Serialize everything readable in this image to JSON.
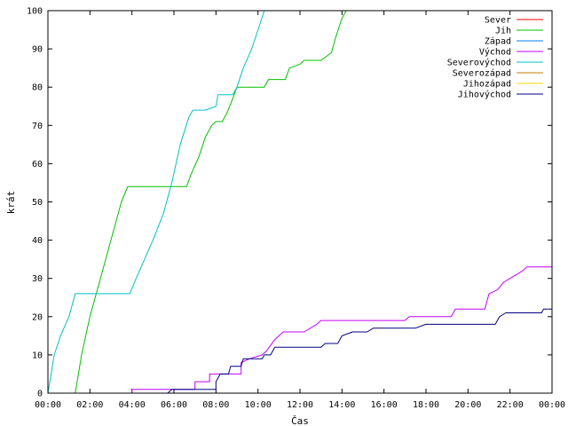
{
  "chart_data": {
    "type": "line",
    "title": "",
    "xlabel": "Čas",
    "ylabel": "krát",
    "x_ticks": [
      "00:00",
      "02:00",
      "04:00",
      "06:00",
      "08:00",
      "10:00",
      "12:00",
      "14:00",
      "16:00",
      "18:00",
      "20:00",
      "22:00",
      "00:00"
    ],
    "xlim": [
      0,
      24
    ],
    "ylim": [
      0,
      100
    ],
    "y_ticks": [
      0,
      10,
      20,
      30,
      40,
      50,
      60,
      70,
      80,
      90,
      100
    ],
    "grid": false,
    "legend_position": "top-right",
    "series": [
      {
        "name": "Sever",
        "color": "#ff0000",
        "points": []
      },
      {
        "name": "Jih",
        "color": "#00c000",
        "points": [
          [
            1.3,
            0
          ],
          [
            1.6,
            10
          ],
          [
            2.0,
            20
          ],
          [
            2.5,
            30
          ],
          [
            3.0,
            40
          ],
          [
            3.5,
            50
          ],
          [
            3.8,
            54
          ],
          [
            4.5,
            54
          ],
          [
            5.5,
            54
          ],
          [
            6.6,
            54
          ],
          [
            6.8,
            57
          ],
          [
            7.2,
            62
          ],
          [
            7.5,
            67
          ],
          [
            7.8,
            70
          ],
          [
            8.0,
            71
          ],
          [
            8.3,
            71
          ],
          [
            8.5,
            73
          ],
          [
            8.8,
            77
          ],
          [
            9.0,
            80
          ],
          [
            9.5,
            80
          ],
          [
            10.3,
            80
          ],
          [
            10.5,
            82
          ],
          [
            11.3,
            82
          ],
          [
            11.5,
            85
          ],
          [
            12.0,
            86
          ],
          [
            12.2,
            87
          ],
          [
            13.0,
            87
          ],
          [
            13.5,
            89
          ],
          [
            13.7,
            93
          ],
          [
            14.0,
            98
          ],
          [
            14.2,
            100
          ]
        ]
      },
      {
        "name": "Západ",
        "color": "#0080ff",
        "points": []
      },
      {
        "name": "Východ",
        "color": "#c000ff",
        "points": [
          [
            4.0,
            0
          ],
          [
            4.0,
            1
          ],
          [
            7.0,
            1
          ],
          [
            7.0,
            3
          ],
          [
            7.7,
            3
          ],
          [
            7.7,
            5
          ],
          [
            9.2,
            5
          ],
          [
            9.2,
            8
          ],
          [
            9.6,
            9
          ],
          [
            10.2,
            10
          ],
          [
            10.4,
            11
          ],
          [
            10.8,
            14
          ],
          [
            11.2,
            16
          ],
          [
            11.5,
            16
          ],
          [
            12.2,
            16
          ],
          [
            12.8,
            18
          ],
          [
            13.0,
            19
          ],
          [
            17.0,
            19
          ],
          [
            17.2,
            20
          ],
          [
            19.2,
            20
          ],
          [
            19.4,
            22
          ],
          [
            20.8,
            22
          ],
          [
            21.0,
            26
          ],
          [
            21.4,
            27
          ],
          [
            21.7,
            29
          ],
          [
            22.0,
            30
          ],
          [
            22.3,
            31
          ],
          [
            22.6,
            32
          ],
          [
            22.8,
            33
          ],
          [
            24.0,
            33
          ],
          [
            24.0,
            34
          ]
        ]
      },
      {
        "name": "Severovýchod",
        "color": "#00c0c0",
        "points": [
          [
            0,
            0
          ],
          [
            0.3,
            10
          ],
          [
            0.6,
            15
          ],
          [
            1.0,
            20
          ],
          [
            1.3,
            26
          ],
          [
            2.0,
            26
          ],
          [
            3.0,
            26
          ],
          [
            3.9,
            26
          ],
          [
            4.2,
            30
          ],
          [
            4.6,
            35
          ],
          [
            5.0,
            40
          ],
          [
            5.5,
            47
          ],
          [
            5.9,
            55
          ],
          [
            6.3,
            65
          ],
          [
            6.7,
            72
          ],
          [
            6.9,
            74
          ],
          [
            7.5,
            74
          ],
          [
            8.0,
            75
          ],
          [
            8.1,
            78
          ],
          [
            8.8,
            78
          ],
          [
            9.0,
            80
          ],
          [
            9.3,
            85
          ],
          [
            9.7,
            90
          ],
          [
            10.0,
            95
          ],
          [
            10.3,
            100
          ]
        ]
      },
      {
        "name": "Severozápad",
        "color": "#c08000",
        "points": []
      },
      {
        "name": "Jihozápad",
        "color": "#ffd700",
        "points": []
      },
      {
        "name": "Jihovýchod",
        "color": "#000080",
        "points": [
          [
            5.7,
            0
          ],
          [
            5.9,
            1
          ],
          [
            8.0,
            1
          ],
          [
            8.0,
            3
          ],
          [
            8.2,
            5
          ],
          [
            8.6,
            5
          ],
          [
            8.7,
            7
          ],
          [
            9.2,
            7
          ],
          [
            9.3,
            9
          ],
          [
            10.2,
            9
          ],
          [
            10.3,
            10
          ],
          [
            10.6,
            10
          ],
          [
            10.8,
            12
          ],
          [
            13.0,
            12
          ],
          [
            13.2,
            13
          ],
          [
            13.8,
            13
          ],
          [
            14.0,
            15
          ],
          [
            14.5,
            16
          ],
          [
            15.2,
            16
          ],
          [
            15.5,
            17
          ],
          [
            17.5,
            17
          ],
          [
            18.0,
            18
          ],
          [
            21.3,
            18
          ],
          [
            21.5,
            20
          ],
          [
            21.8,
            21
          ],
          [
            23.5,
            21
          ],
          [
            23.6,
            22
          ],
          [
            24.0,
            22
          ]
        ]
      }
    ]
  }
}
